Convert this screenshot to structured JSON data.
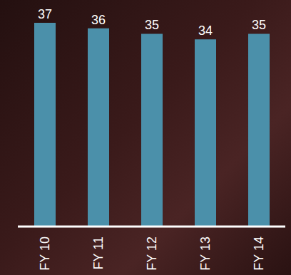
{
  "chart_data": {
    "type": "bar",
    "categories": [
      "FY 10",
      "FY 11",
      "FY 12",
      "FY 13",
      "FY 14"
    ],
    "values": [
      37,
      36,
      35,
      34,
      35
    ],
    "color": "#4b90aa",
    "data_labels": true,
    "tick_labels": "x"
  }
}
